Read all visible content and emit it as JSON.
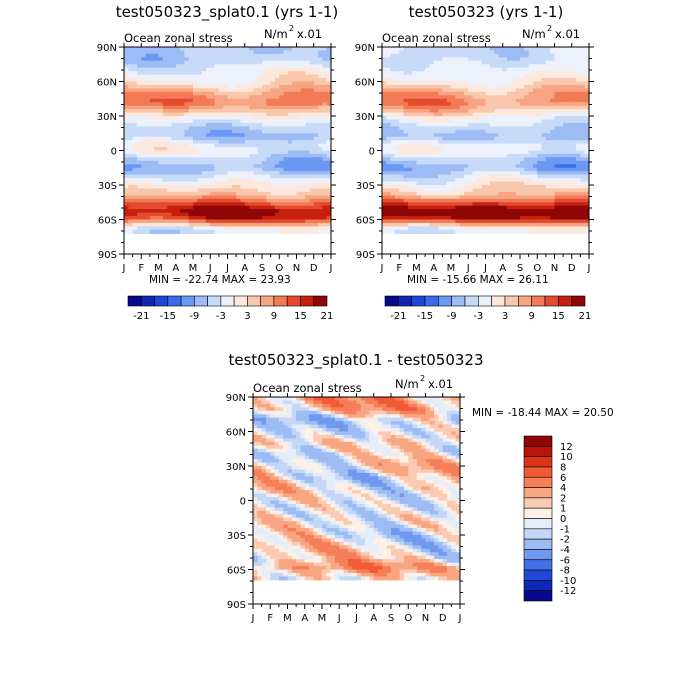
{
  "chart_data": [
    {
      "type": "heatmap",
      "title": "test050323_splat0.1 (yrs 1-1)",
      "variable_label": "Ocean zonal stress",
      "units_base": "N/m",
      "units_exp": "2",
      "units_scale": "x.01",
      "x_ticks": [
        "J",
        "F",
        "M",
        "A",
        "M",
        "J",
        "J",
        "A",
        "S",
        "O",
        "N",
        "D",
        "J"
      ],
      "y_ticks": [
        "90N",
        "60N",
        "30N",
        "0",
        "30S",
        "60S",
        "90S"
      ],
      "stats": "MIN = -22.74  MAX =  23.93",
      "colorbar_orientation": "horizontal",
      "colorbar_labels": [
        "-21",
        "-15",
        "-9",
        "-3",
        "3",
        "9",
        "15",
        "21"
      ],
      "colors": [
        "#08088c",
        "#0f25b5",
        "#1d48d6",
        "#3a6cec",
        "#6a98f2",
        "#9dbcf5",
        "#c7dbf8",
        "#ecf1fb",
        "#fce8dc",
        "#f9c8ac",
        "#f6a482",
        "#f27a56",
        "#e44b2e",
        "#c7200e",
        "#8f0606"
      ],
      "levels": [
        -21,
        -18,
        -15,
        -12,
        -9,
        -6,
        -3,
        0,
        3,
        6,
        9,
        12,
        15,
        18,
        21
      ],
      "profile": [
        {
          "lat": 80,
          "v": -6
        },
        {
          "lat": 70,
          "v": -2
        },
        {
          "lat": 60,
          "v": 1
        },
        {
          "lat": 50,
          "v": 8
        },
        {
          "lat": 42,
          "v": 11
        },
        {
          "lat": 35,
          "v": 5
        },
        {
          "lat": 28,
          "v": -1
        },
        {
          "lat": 20,
          "v": -5
        },
        {
          "lat": 12,
          "v": -7
        },
        {
          "lat": 5,
          "v": -2
        },
        {
          "lat": 0,
          "v": -1
        },
        {
          "lat": -8,
          "v": -6
        },
        {
          "lat": -15,
          "v": -9
        },
        {
          "lat": -22,
          "v": -4
        },
        {
          "lat": -30,
          "v": 1
        },
        {
          "lat": -38,
          "v": 5
        },
        {
          "lat": -45,
          "v": 12
        },
        {
          "lat": -52,
          "v": 19
        },
        {
          "lat": -58,
          "v": 17
        },
        {
          "lat": -63,
          "v": 8
        },
        {
          "lat": -68,
          "v": -2
        },
        {
          "lat": -72,
          "v": -3
        }
      ]
    },
    {
      "type": "heatmap",
      "title": "test050323 (yrs 1-1)",
      "variable_label": "Ocean zonal stress",
      "units_base": "N/m",
      "units_exp": "2",
      "units_scale": "x.01",
      "x_ticks": [
        "J",
        "F",
        "M",
        "A",
        "M",
        "J",
        "J",
        "A",
        "S",
        "O",
        "N",
        "D",
        "J"
      ],
      "y_ticks": [
        "90N",
        "60N",
        "30N",
        "0",
        "30S",
        "60S",
        "90S"
      ],
      "stats": "MIN = -15.66  MAX =  26.11",
      "colorbar_orientation": "horizontal",
      "colorbar_labels": [
        "-21",
        "-15",
        "-9",
        "-3",
        "3",
        "9",
        "15",
        "21"
      ],
      "colors": [
        "#08088c",
        "#0f25b5",
        "#1d48d6",
        "#3a6cec",
        "#6a98f2",
        "#9dbcf5",
        "#c7dbf8",
        "#ecf1fb",
        "#fce8dc",
        "#f9c8ac",
        "#f6a482",
        "#f27a56",
        "#e44b2e",
        "#c7200e",
        "#8f0606"
      ],
      "levels": [
        -21,
        -18,
        -15,
        -12,
        -9,
        -6,
        -3,
        0,
        3,
        6,
        9,
        12,
        15,
        18,
        21
      ],
      "profile": [
        {
          "lat": 80,
          "v": -4
        },
        {
          "lat": 70,
          "v": -2
        },
        {
          "lat": 60,
          "v": 1
        },
        {
          "lat": 50,
          "v": 7
        },
        {
          "lat": 42,
          "v": 10
        },
        {
          "lat": 35,
          "v": 5
        },
        {
          "lat": 28,
          "v": -1
        },
        {
          "lat": 20,
          "v": -5
        },
        {
          "lat": 12,
          "v": -7
        },
        {
          "lat": 5,
          "v": -2
        },
        {
          "lat": 0,
          "v": -1
        },
        {
          "lat": -8,
          "v": -6
        },
        {
          "lat": -15,
          "v": -9
        },
        {
          "lat": -22,
          "v": -4
        },
        {
          "lat": -30,
          "v": 1
        },
        {
          "lat": -38,
          "v": 5
        },
        {
          "lat": -45,
          "v": 13
        },
        {
          "lat": -52,
          "v": 21
        },
        {
          "lat": -58,
          "v": 19
        },
        {
          "lat": -63,
          "v": 9
        },
        {
          "lat": -68,
          "v": -1
        },
        {
          "lat": -72,
          "v": -2
        }
      ]
    },
    {
      "type": "heatmap",
      "title": "test050323_splat0.1 - test050323",
      "variable_label": "Ocean zonal stress",
      "units_base": "N/m",
      "units_exp": "2",
      "units_scale": "x.01",
      "x_ticks": [
        "J",
        "F",
        "M",
        "A",
        "M",
        "J",
        "J",
        "A",
        "S",
        "O",
        "N",
        "D",
        "J"
      ],
      "y_ticks": [
        "90N",
        "60N",
        "30N",
        "0",
        "30S",
        "60S",
        "90S"
      ],
      "stats": "MIN = -18.44 MAX =  20.50",
      "colorbar_orientation": "vertical",
      "colorbar_labels": [
        "12",
        "10",
        "8",
        "6",
        "4",
        "2",
        "1",
        "0",
        "-1",
        "-2",
        "-4",
        "-6",
        "-8",
        "-10",
        "-12"
      ],
      "colors": [
        "#8f0606",
        "#b8150a",
        "#dc3418",
        "#f05a36",
        "#f57f58",
        "#f8a582",
        "#fbcab2",
        "#fdf0e6",
        "#e5edfa",
        "#c4d8f6",
        "#9cbcf3",
        "#6f99ee",
        "#4270e6",
        "#2149d6",
        "#0e28b8",
        "#07088c"
      ],
      "levels": [
        -12,
        -10,
        -8,
        -6,
        -4,
        -2,
        -1,
        0,
        1,
        2,
        4,
        6,
        8,
        10,
        12
      ],
      "profile": [
        {
          "lat": 80,
          "v": -3
        },
        {
          "lat": 70,
          "v": 2
        },
        {
          "lat": 60,
          "v": 1
        },
        {
          "lat": 50,
          "v": -1
        },
        {
          "lat": 40,
          "v": 0.5
        },
        {
          "lat": 30,
          "v": -1.5
        },
        {
          "lat": 20,
          "v": 0.5
        },
        {
          "lat": 10,
          "v": -0.5
        },
        {
          "lat": 0,
          "v": 0.5
        },
        {
          "lat": -10,
          "v": 0.3
        },
        {
          "lat": -20,
          "v": -0.5
        },
        {
          "lat": -30,
          "v": 0.5
        },
        {
          "lat": -40,
          "v": -0.5
        },
        {
          "lat": -50,
          "v": -1
        },
        {
          "lat": -58,
          "v": -4
        },
        {
          "lat": -63,
          "v": -2
        },
        {
          "lat": -70,
          "v": 0.5
        }
      ]
    }
  ]
}
